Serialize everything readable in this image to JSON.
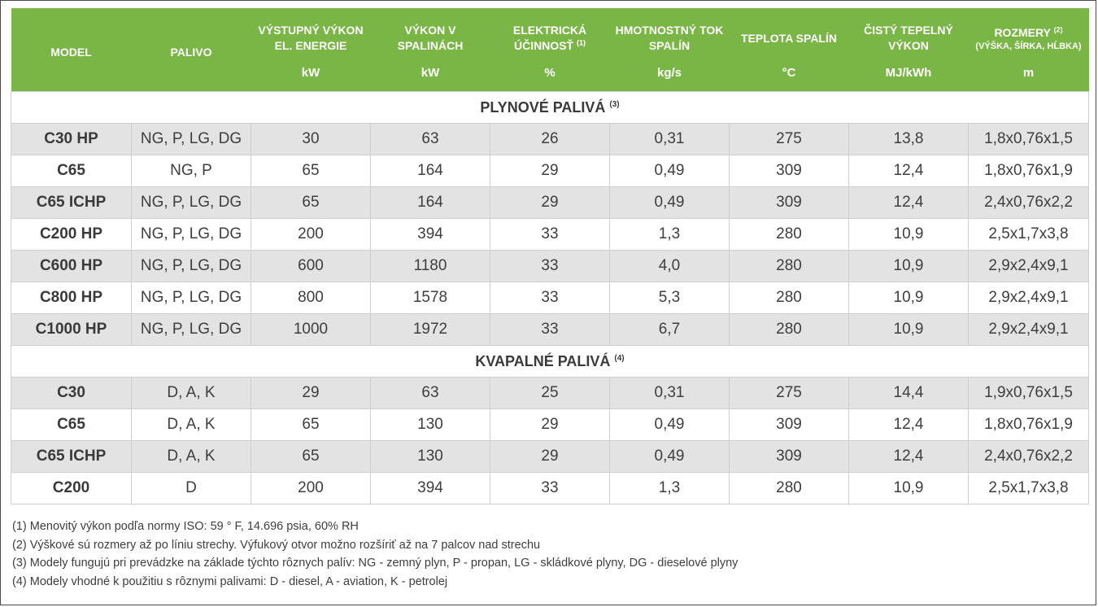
{
  "columns": [
    {
      "label": "MODEL",
      "label2": "",
      "unit": ""
    },
    {
      "label": "PALIVO",
      "label2": "",
      "unit": ""
    },
    {
      "label": "VÝSTUPNÝ VÝKON",
      "label2": "EL. ENERGIE",
      "unit": "kW"
    },
    {
      "label": "VÝKON V",
      "label2": "SPALINÁCH",
      "unit": "kW"
    },
    {
      "label": "ELEKTRICKÁ",
      "label2": "ÚČINNOSŤ",
      "note": "(1)",
      "unit": "%"
    },
    {
      "label": "HMOTNOSTNÝ TOK",
      "label2": "SPALÍN",
      "unit": "kg/s"
    },
    {
      "label": "TEPLOTA SPALÍN",
      "label2": "",
      "unit": "°C"
    },
    {
      "label": "ČISTÝ TEPELNÝ",
      "label2": "VÝKON",
      "unit": "MJ/kWh"
    },
    {
      "label": "ROZMERY",
      "note": "(2)",
      "label2": "(VÝŠKA, ŠÍRKA, HĹBKA)",
      "unit": "m"
    }
  ],
  "sections": [
    {
      "title": "PLYNOVÉ PALIVÁ",
      "note": "(3)",
      "rows": [
        [
          "C30 HP",
          "NG, P, LG, DG",
          "30",
          "63",
          "26",
          "0,31",
          "275",
          "13,8",
          "1,8x0,76x1,5"
        ],
        [
          "C65",
          "NG, P",
          "65",
          "164",
          "29",
          "0,49",
          "309",
          "12,4",
          "1,8x0,76x1,9"
        ],
        [
          "C65 ICHP",
          "NG, P, LG, DG",
          "65",
          "164",
          "29",
          "0,49",
          "309",
          "12,4",
          "2,4x0,76x2,2"
        ],
        [
          "C200 HP",
          "NG, P, LG, DG",
          "200",
          "394",
          "33",
          "1,3",
          "280",
          "10,9",
          "2,5x1,7x3,8"
        ],
        [
          "C600 HP",
          "NG, P, LG, DG",
          "600",
          "1180",
          "33",
          "4,0",
          "280",
          "10,9",
          "2,9x2,4x9,1"
        ],
        [
          "C800 HP",
          "NG, P, LG, DG",
          "800",
          "1578",
          "33",
          "5,3",
          "280",
          "10,9",
          "2,9x2,4x9,1"
        ],
        [
          "C1000 HP",
          "NG, P, LG, DG",
          "1000",
          "1972",
          "33",
          "6,7",
          "280",
          "10,9",
          "2,9x2,4x9,1"
        ]
      ]
    },
    {
      "title": "KVAPALNÉ PALIVÁ",
      "note": "(4)",
      "rows": [
        [
          "C30",
          "D, A, K",
          "29",
          "63",
          "25",
          "0,31",
          "275",
          "14,4",
          "1,9x0,76x1,5"
        ],
        [
          "C65",
          "D, A, K",
          "65",
          "130",
          "29",
          "0,49",
          "309",
          "12,4",
          "1,8x0,76x1,9"
        ],
        [
          "C65 ICHP",
          "D, A, K",
          "65",
          "130",
          "29",
          "0,49",
          "309",
          "12,4",
          "2,4x0,76x2,2"
        ],
        [
          "C200",
          "D",
          "200",
          "394",
          "33",
          "1,3",
          "280",
          "10,9",
          "2,5x1,7x3,8"
        ]
      ]
    }
  ],
  "footnotes": [
    "(1) Menovitý výkon podľa normy ISO: 59 ° F, 14.696 psia, 60% RH",
    "(2) Výškové sú rozmery až po líniu strechy. Výfukový otvor možno rozšíriť až na 7 palcov nad strechu",
    "(3) Modely fungujú pri prevádzke na základe týchto rôznych palív: NG - zemný plyn, P - propan, LG - skládkové plyny, DG - dieselové plyny",
    "(4) Modely vhodné k použitiu s rôznymi palivami: D - diesel, A - aviation, K - petrolej"
  ],
  "colors": {
    "header_green": "#7ab646",
    "row_grey": "#e3e3e3",
    "row_white": "#ffffff"
  }
}
